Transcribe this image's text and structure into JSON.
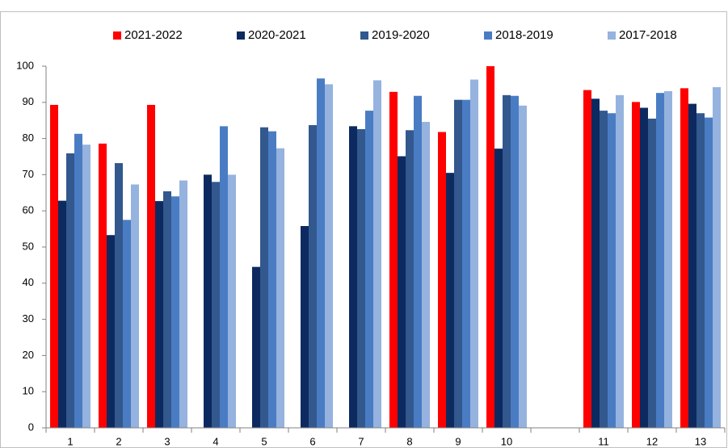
{
  "chart_data": {
    "type": "bar",
    "categories": [
      "1",
      "2",
      "3",
      "4",
      "5",
      "6",
      "7",
      "8",
      "9",
      "10",
      null,
      "11",
      "12",
      "13"
    ],
    "series": [
      {
        "name": "2021-2022",
        "color": "#ff0000",
        "values": [
          89.3,
          78.6,
          89.3,
          null,
          null,
          null,
          null,
          92.9,
          81.8,
          100,
          null,
          93.4,
          90.1,
          93.9
        ]
      },
      {
        "name": "2020-2021",
        "color": "#0c2a60",
        "values": [
          62.8,
          53.3,
          62.7,
          70.0,
          44.5,
          55.8,
          83.4,
          75.1,
          70.5,
          77.2,
          null,
          91.0,
          88.5,
          89.6
        ]
      },
      {
        "name": "2019-2020",
        "color": "#32588e",
        "values": [
          75.9,
          73.2,
          65.4,
          68.0,
          83.1,
          83.7,
          82.6,
          82.3,
          90.7,
          92.0,
          null,
          87.7,
          85.5,
          87.0
        ]
      },
      {
        "name": "2018-2019",
        "color": "#4a7cc4",
        "values": [
          81.3,
          57.5,
          64.0,
          83.4,
          82.0,
          96.6,
          87.7,
          91.8,
          90.7,
          91.8,
          null,
          87.0,
          92.6,
          85.8
        ]
      },
      {
        "name": "2017-2018",
        "color": "#95b3de",
        "values": [
          78.3,
          67.3,
          68.4,
          70.0,
          77.3,
          95.0,
          96.1,
          84.6,
          96.3,
          89.1,
          null,
          92.0,
          93.1,
          94.2
        ]
      }
    ],
    "ylim": [
      0,
      100
    ],
    "yticks": [
      0,
      10,
      20,
      30,
      40,
      50,
      60,
      70,
      80,
      90,
      100
    ],
    "grid": false,
    "legend": "top"
  }
}
